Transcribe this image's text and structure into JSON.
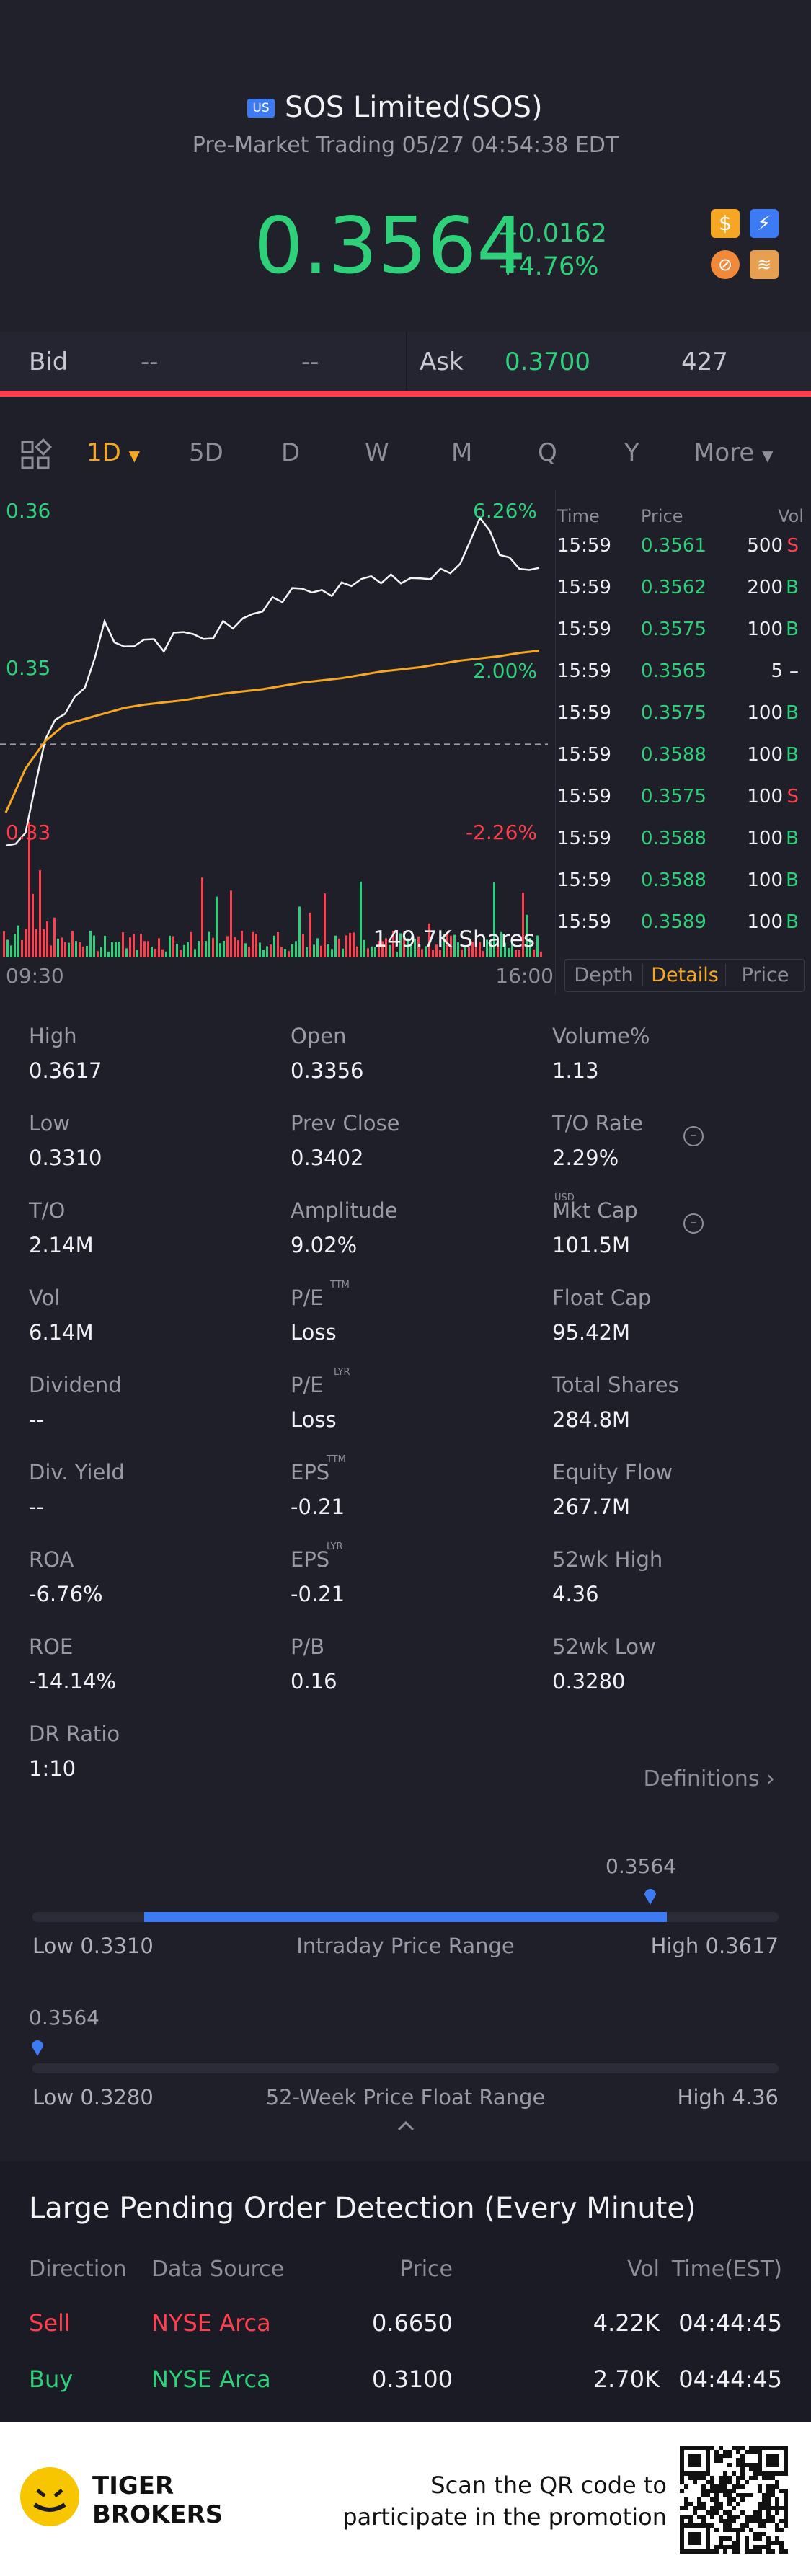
{
  "header": {
    "market_badge": "US",
    "title": "SOS Limited(SOS)",
    "subtitle": "Pre-Market Trading 05/27 04:54:38 EDT",
    "price": "0.3564",
    "change": "+0.0162",
    "change_pct": "+4.76%"
  },
  "bidask": {
    "bid_label": "Bid",
    "bid_price": "--",
    "bid_size": "--",
    "ask_label": "Ask",
    "ask_price": "0.3700",
    "ask_size": "427"
  },
  "tabs": {
    "t1": "1D",
    "t2": "5D",
    "t3": "D",
    "t4": "W",
    "t5": "M",
    "t6": "Q",
    "t7": "Y",
    "more": "More"
  },
  "chart": {
    "y_high": "0.36",
    "y_mid": "0.35",
    "y_low": "0.33",
    "pct_high": "6.26%",
    "pct_mid": "2.00%",
    "pct_low": "-2.26%",
    "volume_label": "149.7K Shares",
    "x_start": "09:30",
    "x_end": "16:00"
  },
  "chart_data": {
    "type": "line",
    "title": "",
    "series": [
      {
        "name": "Price",
        "values": [
          0.331,
          0.3325,
          0.341,
          0.343,
          0.345,
          0.351,
          0.349,
          0.35,
          0.349,
          0.3505,
          0.3495,
          0.351,
          0.3515,
          0.3525,
          0.3535,
          0.3545,
          0.354,
          0.3545,
          0.355,
          0.355,
          0.3552,
          0.3555,
          0.356,
          0.3562,
          0.3605,
          0.3575,
          0.3565,
          0.3565
        ]
      },
      {
        "name": "Average",
        "values": [
          0.334,
          0.338,
          0.3405,
          0.342,
          0.3425,
          0.343,
          0.3435,
          0.3438,
          0.344,
          0.3442,
          0.3445,
          0.3448,
          0.345,
          0.3452,
          0.3455,
          0.3458,
          0.346,
          0.3462,
          0.3465,
          0.3468,
          0.347,
          0.3472,
          0.3475,
          0.3478,
          0.348,
          0.3482,
          0.3485,
          0.3487
        ]
      }
    ],
    "ylim": [
      0.3325,
      0.3613
    ],
    "reference": 0.3402,
    "x_range": [
      "09:30",
      "16:00"
    ]
  },
  "ticks": {
    "h_time": "Time",
    "h_price": "Price",
    "h_vol": "Vol",
    "rows": [
      {
        "time": "15:59",
        "price": "0.3561",
        "vol": "500",
        "side": "S"
      },
      {
        "time": "15:59",
        "price": "0.3562",
        "vol": "200",
        "side": "B"
      },
      {
        "time": "15:59",
        "price": "0.3575",
        "vol": "100",
        "side": "B"
      },
      {
        "time": "15:59",
        "price": "0.3565",
        "vol": "5",
        "side": "–"
      },
      {
        "time": "15:59",
        "price": "0.3575",
        "vol": "100",
        "side": "B"
      },
      {
        "time": "15:59",
        "price": "0.3588",
        "vol": "100",
        "side": "B"
      },
      {
        "time": "15:59",
        "price": "0.3575",
        "vol": "100",
        "side": "S"
      },
      {
        "time": "15:59",
        "price": "0.3588",
        "vol": "100",
        "side": "B"
      },
      {
        "time": "15:59",
        "price": "0.3588",
        "vol": "100",
        "side": "B"
      },
      {
        "time": "15:59",
        "price": "0.3589",
        "vol": "100",
        "side": "B"
      }
    ],
    "tab_depth": "Depth",
    "tab_details": "Details",
    "tab_price": "Price"
  },
  "stats": [
    {
      "label": "High",
      "value": "0.3617"
    },
    {
      "label": "Open",
      "value": "0.3356"
    },
    {
      "label": "Volume%",
      "value": "1.13"
    },
    {
      "label": "Low",
      "value": "0.3310"
    },
    {
      "label": "Prev Close",
      "value": "0.3402"
    },
    {
      "label": "T/O Rate",
      "value": "2.29%"
    },
    {
      "label": "T/O",
      "value": "2.14M"
    },
    {
      "label": "Amplitude",
      "value": "9.02%"
    },
    {
      "label": "Mkt Cap",
      "value": "101.5M"
    },
    {
      "label": "Vol",
      "value": "6.14M"
    },
    {
      "label": "P/E",
      "value": "Loss"
    },
    {
      "label": "Float Cap",
      "value": "95.42M"
    },
    {
      "label": "Dividend",
      "value": "--"
    },
    {
      "label": "P/E",
      "value": "Loss"
    },
    {
      "label": "Total Shares",
      "value": "284.8M"
    },
    {
      "label": "Div. Yield",
      "value": "--"
    },
    {
      "label": "EPS",
      "value": "-0.21"
    },
    {
      "label": "Equity Flow",
      "value": "267.7M"
    },
    {
      "label": "ROA",
      "value": "-6.76%"
    },
    {
      "label": "EPS",
      "value": "-0.21"
    },
    {
      "label": "52wk High",
      "value": "4.36"
    },
    {
      "label": "ROE",
      "value": "-14.14%"
    },
    {
      "label": "P/B",
      "value": "0.16"
    },
    {
      "label": "52wk Low",
      "value": "0.3280"
    },
    {
      "label": "DR Ratio",
      "value": "1:10"
    }
  ],
  "sup": {
    "ttm": "TTM",
    "lyr": "LYR",
    "usd": "USD"
  },
  "definitions": "Definitions",
  "intraday": {
    "marker": "0.3564",
    "low": "Low 0.3310",
    "title": "Intraday Price Range",
    "high": "High 0.3617",
    "fill_start": 0.15,
    "position": 0.85
  },
  "range52": {
    "marker": "0.3564",
    "low": "Low 0.3280",
    "title": "52-Week Price Float Range",
    "high": "High 4.36",
    "position": 0.0
  },
  "pending": {
    "title": "Large Pending Order Detection (Every Minute)",
    "h_dir": "Direction",
    "h_src": "Data Source",
    "h_price": "Price",
    "h_vol": "Vol",
    "h_time": "Time(EST)",
    "rows": [
      {
        "dir": "Sell",
        "src": "NYSE Arca",
        "price": "0.6650",
        "vol": "4.22K",
        "time": "04:44:45"
      },
      {
        "dir": "Buy",
        "src": "NYSE Arca",
        "price": "0.3100",
        "vol": "2.70K",
        "time": "04:44:45"
      }
    ]
  },
  "footer": {
    "brand1": "TIGER",
    "brand2": "BROKERS",
    "promo1": "Scan the QR code to",
    "promo2": "participate in the promotion"
  },
  "colors": {
    "up": "#2fd07a",
    "down": "#ff3f4e",
    "accent": "#f5a623",
    "bar": "#3d7bf5"
  }
}
